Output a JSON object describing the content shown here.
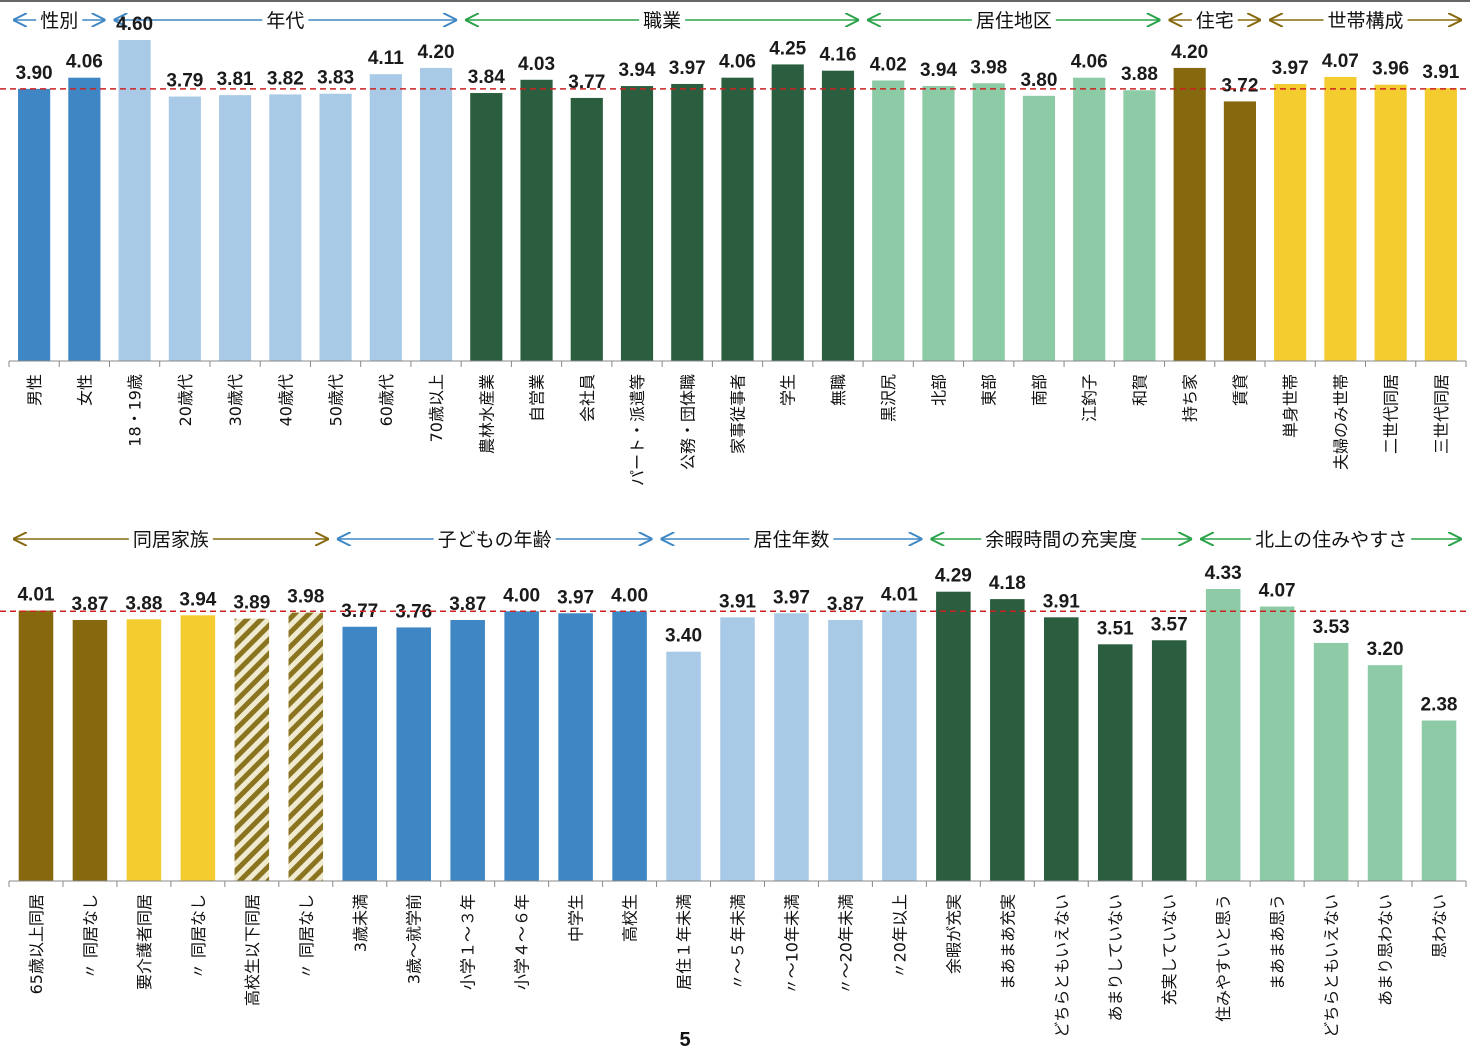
{
  "page_number": "5",
  "colors": {
    "blue": "#3e87c4",
    "light_blue": "#a9cae6",
    "dark_green": "#2a5e3f",
    "light_green": "#8ccba6",
    "olive": "#86690f",
    "yellow": "#f4cc30",
    "reference_line": "#cc2222"
  },
  "chart_data": [
    {
      "type": "bar",
      "title": "",
      "xlabel": "",
      "ylabel": "",
      "ylim": [
        0,
        4.6
      ],
      "reference_line": 3.9,
      "grid": false,
      "groups": [
        {
          "label": "性別",
          "arrow_color": "#3e87c4",
          "start": 0,
          "end": 1
        },
        {
          "label": "年代",
          "arrow_color": "#3e87c4",
          "start": 2,
          "end": 8
        },
        {
          "label": "職業",
          "arrow_color": "#2aa24a",
          "start": 9,
          "end": 16
        },
        {
          "label": "居住地区",
          "arrow_color": "#2aa24a",
          "start": 17,
          "end": 22
        },
        {
          "label": "住宅",
          "arrow_color": "#86690f",
          "start": 23,
          "end": 24
        },
        {
          "label": "世帯構成",
          "arrow_color": "#86690f",
          "start": 25,
          "end": 28
        }
      ],
      "categories": [
        "男性",
        "女性",
        "18・19歳",
        "20歳代",
        "30歳代",
        "40歳代",
        "50歳代",
        "60歳代",
        "70歳以上",
        "農林水産業",
        "自営業",
        "会社員",
        "パート・派遣等",
        "公務・団体職",
        "家事従事者",
        "学生",
        "無職",
        "黒沢尻",
        "北部",
        "東部",
        "南部",
        "江釣子",
        "和賀",
        "持ち家",
        "賃貸",
        "単身世帯",
        "夫婦のみ世帯",
        "二世代同居",
        "三世代同居"
      ],
      "values": [
        3.9,
        4.06,
        4.6,
        3.79,
        3.81,
        3.82,
        3.83,
        4.11,
        4.2,
        3.84,
        4.03,
        3.77,
        3.94,
        3.97,
        4.06,
        4.25,
        4.16,
        4.02,
        3.94,
        3.98,
        3.8,
        4.06,
        3.88,
        4.2,
        3.72,
        3.97,
        4.07,
        3.96,
        3.91
      ],
      "value_labels": [
        "3.90",
        "4.06",
        "4.60",
        "3.79",
        "3.81",
        "3.82",
        "3.83",
        "4.11",
        "4.20",
        "3.84",
        "4.03",
        "3.77",
        "3.94",
        "3.97",
        "4.06",
        "4.25",
        "4.16",
        "4.02",
        "3.94",
        "3.98",
        "3.80",
        "4.06",
        "3.88",
        "4.20",
        "3.72",
        "3.97",
        "4.07",
        "3.96",
        "3.91"
      ],
      "bar_colors": [
        "blue",
        "blue",
        "light_blue",
        "light_blue",
        "light_blue",
        "light_blue",
        "light_blue",
        "light_blue",
        "light_blue",
        "dark_green",
        "dark_green",
        "dark_green",
        "dark_green",
        "dark_green",
        "dark_green",
        "dark_green",
        "dark_green",
        "light_green",
        "light_green",
        "light_green",
        "light_green",
        "light_green",
        "light_green",
        "olive",
        "olive",
        "yellow",
        "yellow",
        "yellow",
        "yellow"
      ]
    },
    {
      "type": "bar",
      "title": "",
      "xlabel": "",
      "ylabel": "",
      "ylim": [
        0,
        4.33
      ],
      "reference_line": 4.0,
      "grid": false,
      "groups": [
        {
          "label": "同居家族",
          "arrow_color": "#86690f",
          "start": 0,
          "end": 5
        },
        {
          "label": "子どもの年齢",
          "arrow_color": "#3e87c4",
          "start": 6,
          "end": 11
        },
        {
          "label": "居住年数",
          "arrow_color": "#3e87c4",
          "start": 12,
          "end": 16
        },
        {
          "label": "余暇時間の充実度",
          "arrow_color": "#2aa24a",
          "start": 17,
          "end": 21
        },
        {
          "label": "北上の住みやすさ",
          "arrow_color": "#2aa24a",
          "start": 22,
          "end": 26
        }
      ],
      "categories": [
        "65歳以上同居",
        "〃 同居なし",
        "要介護者同居",
        "〃 同居なし",
        "高校生以下同居",
        "〃 同居なし",
        "3歳未満",
        "3歳～就学前",
        "小学１～３年",
        "小学４～６年",
        "中学生",
        "高校生",
        "居住１年未満",
        "〃～５年未満",
        "〃～10年未満",
        "〃～20年未満",
        "〃20年以上",
        "余暇が充実",
        "まあまあ充実",
        "どちらともいえない",
        "あまりしていない",
        "充実していない",
        "住みやすいと思う",
        "まあまあ思う",
        "どちらともいえない",
        "あまり思わない",
        "思わない"
      ],
      "values": [
        4.01,
        3.87,
        3.88,
        3.94,
        3.89,
        3.98,
        3.77,
        3.76,
        3.87,
        4.0,
        3.97,
        4.0,
        3.4,
        3.91,
        3.97,
        3.87,
        4.01,
        4.29,
        4.18,
        3.91,
        3.51,
        3.57,
        4.33,
        4.07,
        3.53,
        3.2,
        2.38
      ],
      "value_labels": [
        "4.01",
        "3.87",
        "3.88",
        "3.94",
        "3.89",
        "3.98",
        "3.77",
        "3.76",
        "3.87",
        "4.00",
        "3.97",
        "4.00",
        "3.40",
        "3.91",
        "3.97",
        "3.87",
        "4.01",
        "4.29",
        "4.18",
        "3.91",
        "3.51",
        "3.57",
        "4.33",
        "4.07",
        "3.53",
        "3.20",
        "2.38"
      ],
      "bar_colors": [
        "olive",
        "olive",
        "yellow",
        "yellow",
        "hatch",
        "hatch",
        "blue",
        "blue",
        "blue",
        "blue",
        "blue",
        "blue",
        "light_blue",
        "light_blue",
        "light_blue",
        "light_blue",
        "light_blue",
        "dark_green",
        "dark_green",
        "dark_green",
        "dark_green",
        "dark_green",
        "light_green",
        "light_green",
        "light_green",
        "light_green",
        "light_green"
      ]
    }
  ]
}
